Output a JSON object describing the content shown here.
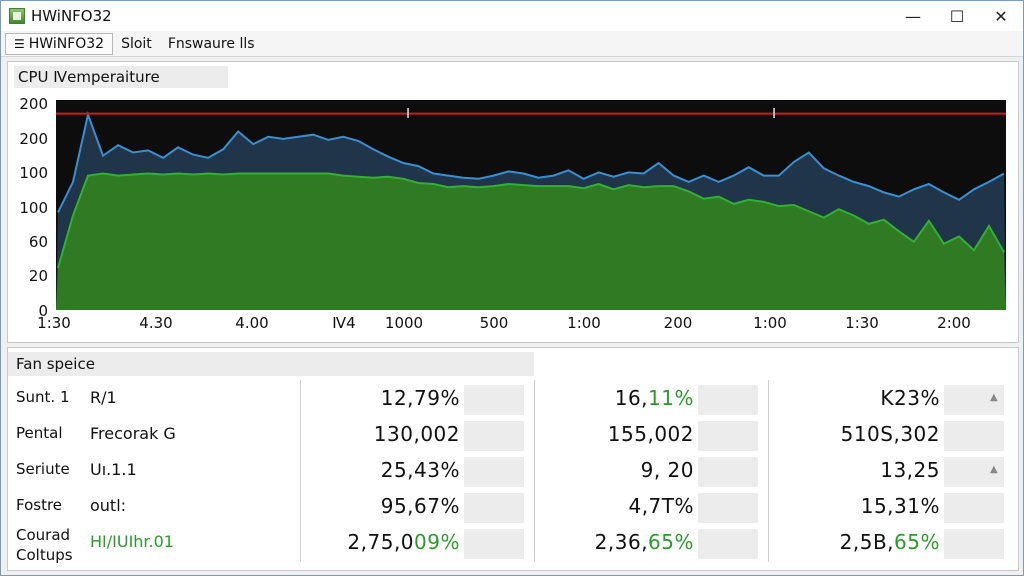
{
  "window": {
    "title": "HWiNFO32",
    "minimize_glyph": "—",
    "maximize_glyph": "☐",
    "close_glyph": "✕"
  },
  "menu": {
    "items": [
      {
        "label": "HWiNFO32",
        "icon": "list-icon"
      },
      {
        "label": "Sloit"
      },
      {
        "label": "Fnswaure lls"
      }
    ]
  },
  "chart_panel": {
    "title": "CPU Ⅳemperaiture"
  },
  "chart_data": {
    "type": "area",
    "title": "CPU Ⅳemperaiture",
    "y_tick_labels": [
      "200",
      "200",
      "100",
      "100",
      "60",
      "20",
      "0"
    ],
    "x_tick_labels": [
      "1:30",
      "4.30",
      "4.00",
      "Ⅳ4",
      "1000",
      "500",
      "1:00",
      "200",
      "1:00",
      "1:30",
      "2:00"
    ],
    "limit_line_value": 187,
    "markers": [
      "I",
      "I"
    ],
    "ylim": [
      0,
      200
    ],
    "series": [
      {
        "color": "#3a8fd0",
        "fill": "#22384e",
        "values": [
          93,
          122,
          186,
          147,
          157,
          150,
          152,
          145,
          155,
          148,
          145,
          153,
          170,
          158,
          165,
          163,
          165,
          167,
          162,
          165,
          161,
          153,
          146,
          140,
          137,
          130,
          128,
          126,
          125,
          128,
          132,
          130,
          126,
          128,
          133,
          125,
          131,
          127,
          131,
          130,
          140,
          128,
          122,
          128,
          122,
          128,
          136,
          128,
          128,
          141,
          150,
          135,
          128,
          122,
          118,
          112,
          108,
          115,
          120,
          112,
          105,
          115,
          122,
          130
        ]
      },
      {
        "color": "#33b033",
        "fill": "#2f7a22",
        "values": [
          40,
          90,
          128,
          130,
          128,
          129,
          130,
          129,
          130,
          129,
          130,
          129,
          130,
          130,
          130,
          130,
          130,
          130,
          130,
          128,
          127,
          126,
          127,
          125,
          121,
          120,
          117,
          118,
          117,
          118,
          120,
          119,
          118,
          118,
          118,
          116,
          120,
          115,
          119,
          117,
          118,
          118,
          113,
          106,
          108,
          101,
          105,
          103,
          99,
          100,
          94,
          88,
          96,
          90,
          82,
          86,
          75,
          65,
          85,
          63,
          70,
          57,
          80,
          55
        ]
      }
    ]
  },
  "fan_panel": {
    "title": "Fan speice",
    "rows": [
      {
        "label": "Sunt. 1",
        "sub": "R/1",
        "v1": "12,79%",
        "v2": "16,11%",
        "v3": "K23%",
        "v2_green": "11%"
      },
      {
        "label": "Pental",
        "sub": "Frecorak G",
        "v1": "130,002",
        "v2": "155,002",
        "v3": "510S,302"
      },
      {
        "label": "Seriute",
        "sub": "Uı.1.1",
        "v1": "25,43%",
        "v2": "9, 20",
        "v3": "13,25"
      },
      {
        "label": "Fostre",
        "sub": "outl:",
        "v1": "95,67%",
        "v2": "4,7T%",
        "v3": "15,31%"
      },
      {
        "label": "Courad",
        "label2": "Coltups",
        "sub": "HI/IUIhr.01",
        "v1": "2,75,0",
        "v1_green": "09%",
        "v2": "2,36,",
        "v2_green": "65%",
        "v3": "2,5B,",
        "v3_green": "65%"
      }
    ]
  }
}
